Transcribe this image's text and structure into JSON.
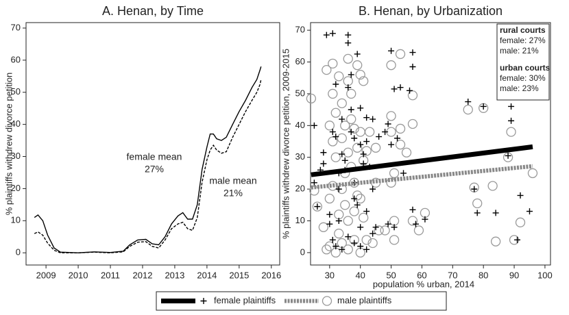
{
  "chart_data": [
    {
      "type": "line",
      "title": "A. Henan, by Time",
      "ylabel": "% plaintiffs withdrew divorce petition",
      "xlim": [
        2008.38,
        2016.26
      ],
      "xticks": [
        2009,
        2010,
        2011,
        2012,
        2013,
        2014,
        2015,
        2016
      ],
      "ylim": [
        -3.8,
        71.7
      ],
      "yticks": [
        0,
        10,
        20,
        30,
        40,
        50,
        60,
        70
      ],
      "x": [
        2008.64,
        2008.75,
        2008.9,
        2009.05,
        2009.25,
        2009.45,
        2010,
        2010.5,
        2011,
        2011.4,
        2011.6,
        2011.85,
        2012.1,
        2012.3,
        2012.5,
        2012.7,
        2012.9,
        2013.1,
        2013.25,
        2013.4,
        2013.55,
        2013.7,
        2013.85,
        2014.0,
        2014.1,
        2014.2,
        2014.3,
        2014.45,
        2014.6,
        2014.8,
        2015.0,
        2015.2,
        2015.4,
        2015.55,
        2015.65,
        2015.68
      ],
      "series": [
        {
          "color": "#000000",
          "line_style": "solid",
          "values": [
            11,
            11.8,
            10,
            5.5,
            1.5,
            0.2,
            0,
            0.3,
            0.1,
            0.5,
            2.5,
            4,
            4.2,
            2.8,
            2.5,
            5,
            9,
            11.5,
            12.5,
            10.5,
            10.5,
            15,
            26,
            33,
            37,
            37,
            35.5,
            35,
            36,
            40,
            44,
            47.5,
            51.5,
            54,
            57,
            58
          ]
        },
        {
          "color": "#000000",
          "line_style": "dashed",
          "values": [
            6,
            6.5,
            5.5,
            3,
            0.8,
            0,
            0,
            0.2,
            0,
            0.3,
            2,
            3.3,
            3.5,
            2,
            1.5,
            4,
            7.5,
            9,
            9.5,
            7.5,
            7,
            11,
            22,
            29,
            32,
            33.5,
            32,
            31,
            31.5,
            36,
            40,
            44,
            47.5,
            50,
            52.5,
            54
          ]
        }
      ],
      "annotations": [
        {
          "lines": [
            "female mean",
            "27%"
          ]
        },
        {
          "lines": [
            "male mean",
            "21%"
          ]
        }
      ]
    },
    {
      "type": "scatter",
      "title": "B. Henan, by Urbanization",
      "xlabel": "population % urban, 2014",
      "ylabel": "% plaintiffs withdrew divorce petition, 2009-2015",
      "xlim": [
        23.8,
        101.8
      ],
      "xticks": [
        30,
        40,
        50,
        60,
        70,
        80,
        90,
        100
      ],
      "ylim": [
        -3.9,
        72.4
      ],
      "yticks": [
        0,
        10,
        20,
        30,
        40,
        50,
        60,
        70
      ],
      "series": [
        {
          "name": "female plaintiffs",
          "color": "#000000",
          "marker": "plus",
          "x": [
            25,
            25,
            26,
            27,
            28,
            28,
            29,
            31,
            31,
            32,
            32,
            33,
            33,
            33,
            34,
            34,
            35,
            35,
            36,
            36,
            36,
            37,
            37,
            37,
            38,
            38,
            38,
            39,
            39,
            40,
            40,
            40,
            41,
            41,
            42,
            42,
            42,
            43,
            44,
            44,
            45,
            46,
            48,
            49,
            49,
            50,
            50,
            51,
            51,
            52,
            53,
            54,
            56,
            57,
            57,
            57,
            58,
            61,
            75,
            77,
            78,
            80,
            84,
            88,
            89,
            89,
            91,
            92,
            95,
            31,
            32,
            34,
            36,
            38,
            40,
            42,
            44,
            30,
            30
          ],
          "values": [
            40,
            22,
            14.5,
            26,
            28,
            31.5,
            68.5,
            69,
            38,
            53,
            36.5,
            25,
            20,
            10,
            42,
            31,
            29,
            26,
            68.5,
            66,
            52,
            56,
            45,
            38,
            36,
            22,
            17,
            62.5,
            15,
            45.5,
            34,
            8,
            31,
            28,
            42.5,
            35,
            13,
            27,
            42,
            20,
            8,
            36.5,
            38,
            9,
            40.5,
            63.5,
            34,
            51.5,
            8,
            36,
            52,
            25,
            51,
            63,
            58.5,
            13.5,
            9,
            10.5,
            47.5,
            20,
            12.5,
            46,
            12.5,
            30.5,
            46,
            41.5,
            4,
            18,
            13,
            4,
            2,
            1,
            5,
            3,
            2,
            1,
            6,
            12,
            9
          ],
          "fit": {
            "x": [
              24,
              96
            ],
            "values": [
              24.5,
              33.3
            ]
          }
        },
        {
          "name": "male plaintiffs",
          "color": "#999999",
          "marker": "circle",
          "x": [
            24,
            25,
            26,
            28,
            29,
            30,
            30,
            30,
            31,
            31,
            31,
            31,
            32,
            32,
            33,
            33,
            33,
            34,
            34,
            34,
            35,
            35,
            35,
            36,
            36,
            36,
            36,
            37,
            37,
            37,
            38,
            38,
            38,
            39,
            39,
            39,
            40,
            40,
            40,
            41,
            41,
            41,
            42,
            42,
            43,
            45,
            45,
            46,
            48,
            50,
            50,
            50,
            50,
            51,
            51,
            51,
            53,
            53,
            53,
            55,
            57,
            57,
            57,
            59,
            61,
            75,
            77,
            78,
            80,
            83,
            84,
            88,
            89,
            90,
            92,
            96,
            29,
            32,
            34,
            36,
            38,
            40,
            44
          ],
          "values": [
            48.5,
            19.5,
            14.5,
            8,
            57.5,
            40,
            17,
            2,
            59.5,
            50,
            35,
            21,
            44,
            30,
            55.5,
            12,
            6,
            47,
            36,
            20,
            40,
            25,
            15,
            61,
            54,
            31.5,
            10,
            50,
            42,
            27,
            39,
            22,
            4,
            59,
            33,
            18,
            56,
            38,
            0,
            54,
            29,
            11,
            32,
            4,
            38,
            33,
            22,
            7,
            7,
            59,
            43,
            38,
            22,
            25,
            10,
            4,
            62.5,
            39,
            34,
            31.5,
            49.5,
            40.5,
            10,
            7,
            12.5,
            45,
            20.5,
            15.5,
            45.5,
            21,
            3.5,
            30,
            38,
            4,
            9.5,
            25,
            1,
            0,
            3,
            1,
            13,
            17,
            3
          ],
          "fit": {
            "x": [
              24,
              96
            ],
            "values": [
              20.5,
              27.2
            ]
          }
        }
      ],
      "info_box": [
        {
          "title": "rural courts",
          "lines": [
            "female: 27%",
            "male: 21%"
          ]
        },
        {
          "title": "urban courts",
          "lines": [
            "female: 30%",
            "male: 23%"
          ]
        }
      ]
    }
  ]
}
